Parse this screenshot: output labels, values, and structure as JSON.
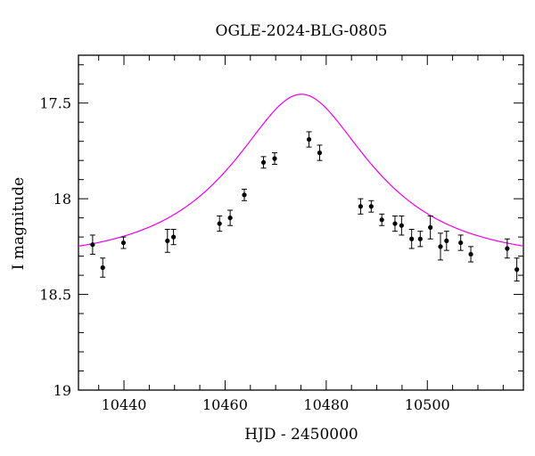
{
  "chart_data": {
    "type": "scatter",
    "title": "OGLE-2024-BLG-0805",
    "xlabel": "HJD - 2450000",
    "ylabel": "I magnitude",
    "xlim": [
      10431,
      10519
    ],
    "ylim": [
      19,
      17.25
    ],
    "y_inverted": true,
    "x_ticks": [
      10440,
      10460,
      10480,
      10500
    ],
    "y_ticks": [
      17.5,
      18,
      18.5,
      19
    ],
    "y_tick_labels": [
      "17.5",
      "18",
      "18.5",
      "19"
    ],
    "x_minor_step": 5,
    "y_minor_step": 0.1,
    "grid": false,
    "model_color": "#e800e8",
    "point_color": "#000000",
    "model": {
      "name": "",
      "t0": 10475.1,
      "tE": 23.8,
      "u0": 0.49,
      "base_mag": 18.32
    },
    "series": [
      {
        "name": "",
        "points": [
          {
            "x": 10433.8,
            "y": 18.24,
            "err": 0.05
          },
          {
            "x": 10435.8,
            "y": 18.36,
            "err": 0.05
          },
          {
            "x": 10439.9,
            "y": 18.23,
            "err": 0.03
          },
          {
            "x": 10448.6,
            "y": 18.22,
            "err": 0.06
          },
          {
            "x": 10449.8,
            "y": 18.2,
            "err": 0.04
          },
          {
            "x": 10458.9,
            "y": 18.13,
            "err": 0.04
          },
          {
            "x": 10461.0,
            "y": 18.1,
            "err": 0.04
          },
          {
            "x": 10463.8,
            "y": 17.98,
            "err": 0.03
          },
          {
            "x": 10467.6,
            "y": 17.81,
            "err": 0.03
          },
          {
            "x": 10469.8,
            "y": 17.79,
            "err": 0.03
          },
          {
            "x": 10476.6,
            "y": 17.69,
            "err": 0.04
          },
          {
            "x": 10478.7,
            "y": 17.76,
            "err": 0.04
          },
          {
            "x": 10486.8,
            "y": 18.04,
            "err": 0.04
          },
          {
            "x": 10488.9,
            "y": 18.04,
            "err": 0.03
          },
          {
            "x": 10491.0,
            "y": 18.11,
            "err": 0.03
          },
          {
            "x": 10493.6,
            "y": 18.13,
            "err": 0.04
          },
          {
            "x": 10494.9,
            "y": 18.14,
            "err": 0.05
          },
          {
            "x": 10496.9,
            "y": 18.21,
            "err": 0.05
          },
          {
            "x": 10498.6,
            "y": 18.21,
            "err": 0.04
          },
          {
            "x": 10500.6,
            "y": 18.15,
            "err": 0.06
          },
          {
            "x": 10502.6,
            "y": 18.25,
            "err": 0.07
          },
          {
            "x": 10503.8,
            "y": 18.22,
            "err": 0.05
          },
          {
            "x": 10506.6,
            "y": 18.23,
            "err": 0.04
          },
          {
            "x": 10508.6,
            "y": 18.29,
            "err": 0.04
          },
          {
            "x": 10515.8,
            "y": 18.26,
            "err": 0.05
          },
          {
            "x": 10517.7,
            "y": 18.37,
            "err": 0.06
          }
        ]
      }
    ]
  }
}
